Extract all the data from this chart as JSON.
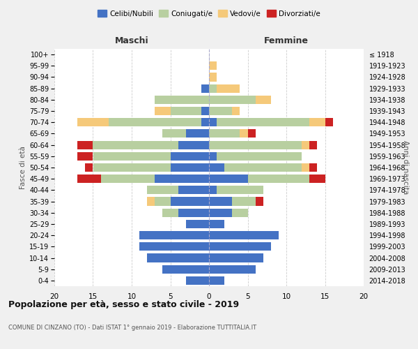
{
  "age_groups": [
    "0-4",
    "5-9",
    "10-14",
    "15-19",
    "20-24",
    "25-29",
    "30-34",
    "35-39",
    "40-44",
    "45-49",
    "50-54",
    "55-59",
    "60-64",
    "65-69",
    "70-74",
    "75-79",
    "80-84",
    "85-89",
    "90-94",
    "95-99",
    "100+"
  ],
  "birth_years": [
    "2014-2018",
    "2009-2013",
    "2004-2008",
    "1999-2003",
    "1994-1998",
    "1989-1993",
    "1984-1988",
    "1979-1983",
    "1974-1978",
    "1969-1973",
    "1964-1968",
    "1959-1963",
    "1954-1958",
    "1949-1953",
    "1944-1948",
    "1939-1943",
    "1934-1938",
    "1929-1933",
    "1924-1928",
    "1919-1923",
    "≤ 1918"
  ],
  "maschi": {
    "celibi": [
      3,
      6,
      8,
      9,
      9,
      3,
      4,
      5,
      4,
      7,
      5,
      5,
      4,
      3,
      1,
      1,
      0,
      1,
      0,
      0,
      0
    ],
    "coniugati": [
      0,
      0,
      0,
      0,
      0,
      0,
      2,
      2,
      4,
      7,
      10,
      10,
      11,
      3,
      12,
      4,
      7,
      0,
      0,
      0,
      0
    ],
    "vedovi": [
      0,
      0,
      0,
      0,
      0,
      0,
      0,
      1,
      0,
      0,
      0,
      0,
      0,
      0,
      4,
      2,
      0,
      0,
      0,
      0,
      0
    ],
    "divorziati": [
      0,
      0,
      0,
      0,
      0,
      0,
      0,
      0,
      0,
      3,
      1,
      2,
      2,
      0,
      0,
      0,
      0,
      0,
      0,
      0,
      0
    ]
  },
  "femmine": {
    "nubili": [
      2,
      6,
      7,
      8,
      9,
      2,
      3,
      3,
      1,
      5,
      2,
      1,
      0,
      0,
      1,
      0,
      0,
      0,
      0,
      0,
      0
    ],
    "coniugate": [
      0,
      0,
      0,
      0,
      0,
      0,
      2,
      3,
      6,
      8,
      10,
      11,
      12,
      4,
      12,
      3,
      6,
      1,
      0,
      0,
      0
    ],
    "vedove": [
      0,
      0,
      0,
      0,
      0,
      0,
      0,
      0,
      0,
      0,
      1,
      0,
      1,
      1,
      2,
      1,
      2,
      3,
      1,
      1,
      0
    ],
    "divorziate": [
      0,
      0,
      0,
      0,
      0,
      0,
      0,
      1,
      0,
      2,
      1,
      0,
      1,
      1,
      1,
      0,
      0,
      0,
      0,
      0,
      0
    ]
  },
  "colors": {
    "celibi": "#4472c4",
    "coniugati": "#b8cfa0",
    "vedovi": "#f5c97a",
    "divorziati": "#cc2222"
  },
  "xlim": 20,
  "title": "Popolazione per età, sesso e stato civile - 2019",
  "subtitle": "COMUNE DI CINZANO (TO) - Dati ISTAT 1° gennaio 2019 - Elaborazione TUTTITALIA.IT",
  "xlabel_left": "Maschi",
  "xlabel_right": "Femmine",
  "ylabel_left": "Fasce di età",
  "ylabel_right": "Anni di nascita",
  "legend_labels": [
    "Celibi/Nubili",
    "Coniugati/e",
    "Vedovi/e",
    "Divorziati/e"
  ],
  "bg_color": "#f0f0f0",
  "plot_bg_color": "#ffffff"
}
